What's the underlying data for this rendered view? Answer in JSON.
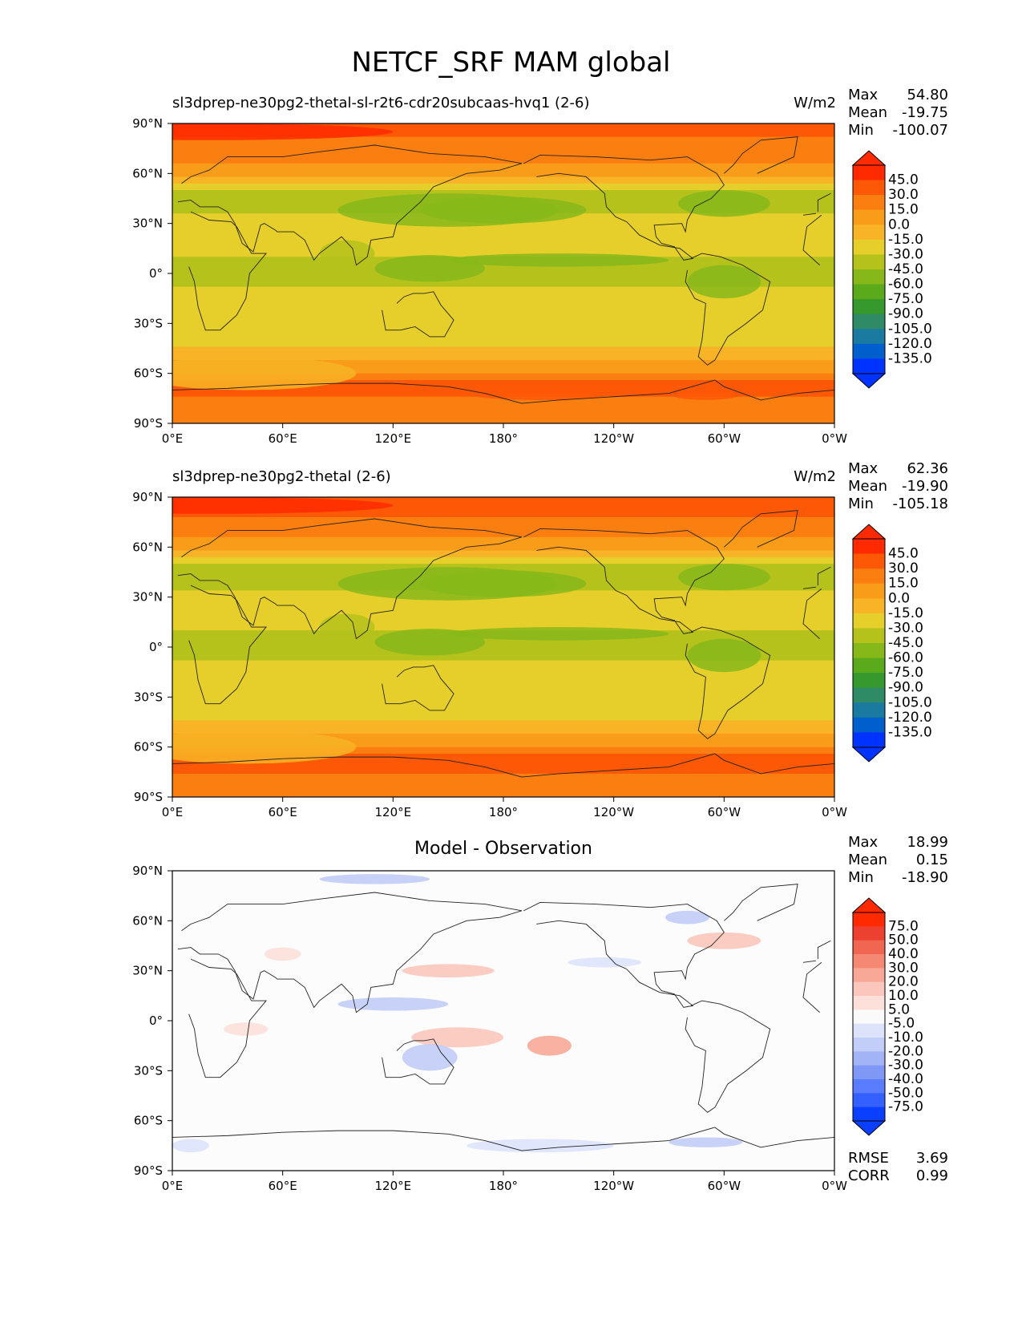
{
  "page": {
    "title": "NETCF_SRF MAM global"
  },
  "colors": {
    "model_scale": [
      "#0033ff",
      "#005fcc",
      "#1a7aa0",
      "#2f8a66",
      "#36992e",
      "#5aaa1c",
      "#86b81a",
      "#b5c21c",
      "#e6cf2a",
      "#f8b426",
      "#f99c1a",
      "#fb7f10",
      "#fd5806",
      "#ff2a00"
    ],
    "diff_scale": [
      "#0a3fff",
      "#3360ff",
      "#5a7dff",
      "#7f98f5",
      "#a3b4f6",
      "#c2cdf8",
      "#dde3fb",
      "#fafafa",
      "#fde0da",
      "#fbc6bb",
      "#f8a897",
      "#f48872",
      "#f06650",
      "#ec4030",
      "#ff2a00"
    ],
    "coastline": "#222222"
  },
  "icons": {
    "colorbar_extend": "triangle-arrow-icon"
  },
  "panels": [
    {
      "title": "sl3dprep-ne30pg2-thetal-sl-r2t6-cdr20subcaas-hvq1 (2-6)",
      "units": "W/m2",
      "stats": {
        "max_label": "Max",
        "max": "54.80",
        "mean_label": "Mean",
        "mean": "-19.75",
        "min_label": "Min",
        "min": "-100.07"
      },
      "colorbar_labels": [
        "45.0",
        "30.0",
        "15.0",
        "0.0",
        "-15.0",
        "-30.0",
        "-45.0",
        "-60.0",
        "-75.0",
        "-90.0",
        "-105.0",
        "-120.0",
        "-135.0"
      ]
    },
    {
      "title": "sl3dprep-ne30pg2-thetal (2-6)",
      "units": "W/m2",
      "stats": {
        "max_label": "Max",
        "max": "62.36",
        "mean_label": "Mean",
        "mean": "-19.90",
        "min_label": "Min",
        "min": "-105.18"
      },
      "colorbar_labels": [
        "45.0",
        "30.0",
        "15.0",
        "0.0",
        "-15.0",
        "-30.0",
        "-45.0",
        "-60.0",
        "-75.0",
        "-90.0",
        "-105.0",
        "-120.0",
        "-135.0"
      ]
    },
    {
      "title": "Model - Observation",
      "units": "",
      "stats": {
        "max_label": "Max",
        "max": "18.99",
        "mean_label": "Mean",
        "mean": "0.15",
        "min_label": "Min",
        "min": "-18.90"
      },
      "colorbar_labels": [
        "75.0",
        "50.0",
        "40.0",
        "30.0",
        "20.0",
        "10.0",
        "5.0",
        "-5.0",
        "-10.0",
        "-20.0",
        "-30.0",
        "-40.0",
        "-50.0",
        "-75.0"
      ],
      "footer": {
        "rmse_label": "RMSE",
        "rmse": "3.69",
        "corr_label": "CORR",
        "corr": "0.99"
      }
    }
  ],
  "chart_data": [
    {
      "type": "heatmap",
      "title": "sl3dprep-ne30pg2-thetal-sl-r2t6-cdr20subcaas-hvq1 (2-6)",
      "units": "W/m2",
      "x_ticks": [
        "0°E",
        "60°E",
        "120°E",
        "180°",
        "120°W",
        "60°W",
        "0°W"
      ],
      "y_ticks": [
        "90°N",
        "60°N",
        "30°N",
        "0°",
        "30°S",
        "60°S",
        "90°S"
      ],
      "xlim": [
        0,
        360
      ],
      "ylim": [
        -90,
        90
      ],
      "levels": [
        -135,
        -120,
        -105,
        -90,
        -75,
        -60,
        -45,
        -30,
        -15,
        0,
        15,
        30,
        45
      ],
      "zonal_profile": {
        "lat": [
          90,
          80,
          70,
          60,
          50,
          40,
          30,
          20,
          10,
          0,
          -10,
          -20,
          -30,
          -40,
          -50,
          -55,
          -60,
          -65,
          -70,
          -75,
          -80,
          -90
        ],
        "value": [
          40,
          28,
          20,
          5,
          -30,
          -40,
          -20,
          -22,
          -30,
          -40,
          -28,
          -20,
          -25,
          -20,
          -5,
          5,
          15,
          30,
          35,
          28,
          20,
          15
        ]
      },
      "max": 54.8,
      "mean": -19.75,
      "min": -100.07
    },
    {
      "type": "heatmap",
      "title": "sl3dprep-ne30pg2-thetal (2-6)",
      "units": "W/m2",
      "x_ticks": [
        "0°E",
        "60°E",
        "120°E",
        "180°",
        "120°W",
        "60°W",
        "0°W"
      ],
      "y_ticks": [
        "90°N",
        "60°N",
        "30°N",
        "0°",
        "30°S",
        "60°S",
        "90°S"
      ],
      "xlim": [
        0,
        360
      ],
      "ylim": [
        -90,
        90
      ],
      "levels": [
        -135,
        -120,
        -105,
        -90,
        -75,
        -60,
        -45,
        -30,
        -15,
        0,
        15,
        30,
        45
      ],
      "zonal_profile": {
        "lat": [
          90,
          80,
          70,
          60,
          50,
          40,
          30,
          20,
          10,
          0,
          -10,
          -20,
          -30,
          -40,
          -50,
          -55,
          -60,
          -65,
          -70,
          -75,
          -80,
          -90
        ],
        "value": [
          45,
          32,
          22,
          5,
          -32,
          -42,
          -20,
          -22,
          -30,
          -42,
          -28,
          -20,
          -25,
          -20,
          -5,
          5,
          15,
          30,
          38,
          30,
          20,
          15
        ]
      },
      "max": 62.36,
      "mean": -19.9,
      "min": -105.18
    },
    {
      "type": "heatmap",
      "title": "Model - Observation",
      "x_ticks": [
        "0°E",
        "60°E",
        "120°E",
        "180°",
        "120°W",
        "60°W",
        "0°W"
      ],
      "y_ticks": [
        "90°N",
        "60°N",
        "30°N",
        "0°",
        "30°S",
        "60°S",
        "90°S"
      ],
      "xlim": [
        0,
        360
      ],
      "ylim": [
        -90,
        90
      ],
      "levels": [
        -75,
        -50,
        -40,
        -30,
        -20,
        -10,
        -5,
        5,
        10,
        20,
        30,
        40,
        50,
        75
      ],
      "max": 18.99,
      "mean": 0.15,
      "min": -18.9,
      "rmse": 3.69,
      "corr": 0.99
    }
  ]
}
